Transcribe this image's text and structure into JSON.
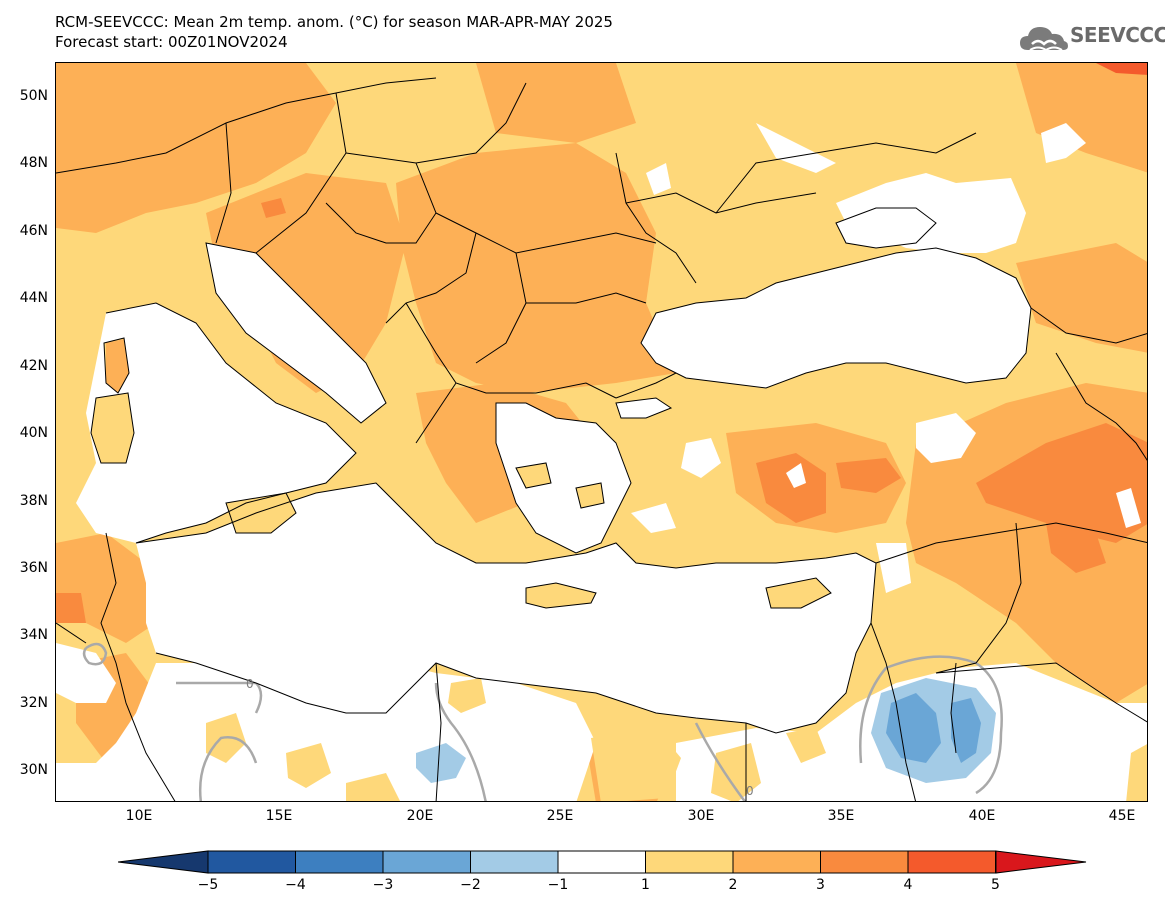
{
  "title": {
    "line1": "RCM-SEEVCCC: Mean 2m temp. anom. (°C) for season MAR-APR-MAY 2025",
    "line2": "Forecast start: 00Z01NOV2024"
  },
  "logo": {
    "text": "SEEVCCC",
    "icon": "cloud-icon"
  },
  "axes": {
    "lat_labels": [
      "50N",
      "48N",
      "46N",
      "44N",
      "42N",
      "40N",
      "38N",
      "36N",
      "34N",
      "32N",
      "30N"
    ],
    "lon_labels": [
      "10E",
      "15E",
      "20E",
      "25E",
      "30E",
      "35E",
      "40E",
      "45E"
    ]
  },
  "map_annotations": {
    "contour_labels": [
      "0",
      "0"
    ]
  },
  "colorbar": {
    "labels": [
      "-5",
      "-4",
      "-3",
      "-2",
      "-1",
      "1",
      "2",
      "3",
      "4",
      "5"
    ],
    "colors": [
      "#2158a0",
      "#3d7fc0",
      "#6aa6d6",
      "#a3cbe6",
      "#ffffff",
      "#fed87a",
      "#fdb056",
      "#f98a3e",
      "#f45a2c"
    ],
    "under_color": "#16386e",
    "over_color": "#d9171c"
  },
  "legend_colors": {
    "warm_1_2": "#fed87a",
    "warm_2_3": "#fdb056",
    "warm_3_4": "#f98a3e",
    "warm_4_5": "#f45a2c",
    "cool_m1_m2": "#a3cbe6",
    "cool_m2_m3": "#6aa6d6",
    "contour_zero": "#a9a9a9"
  }
}
